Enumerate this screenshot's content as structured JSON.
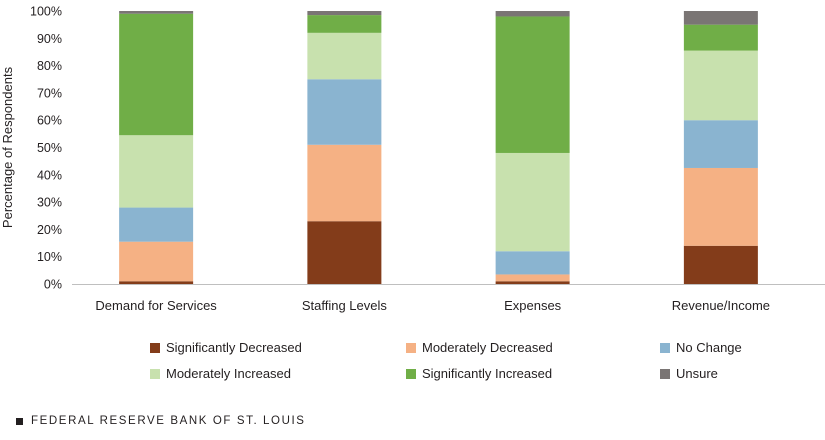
{
  "chart_data": {
    "type": "bar",
    "stacked": true,
    "categories": [
      "Demand for Services",
      "Staffing Levels",
      "Expenses",
      "Revenue/Income"
    ],
    "series": [
      {
        "name": "Significantly Decreased",
        "color": "#833c1a",
        "values": [
          1,
          23,
          1,
          14
        ]
      },
      {
        "name": "Moderately Decreased",
        "color": "#f5b184",
        "values": [
          14.5,
          28,
          2.5,
          28.5
        ]
      },
      {
        "name": "No Change",
        "color": "#8ab4d0",
        "values": [
          12.5,
          24,
          8.5,
          17.5
        ]
      },
      {
        "name": "Moderately Increased",
        "color": "#c8e1ae",
        "values": [
          26.5,
          17,
          36,
          25.5
        ]
      },
      {
        "name": "Significantly Increased",
        "color": "#70ae47",
        "values": [
          44.5,
          6.5,
          50,
          9.5
        ]
      },
      {
        "name": "Unsure",
        "color": "#7a7574",
        "values": [
          1,
          1.5,
          2,
          5
        ]
      }
    ],
    "ylabel": "Percentage of Respondents",
    "ylim": [
      0,
      100
    ],
    "yticks": [
      0,
      10,
      20,
      30,
      40,
      50,
      60,
      70,
      80,
      90,
      100
    ],
    "ytick_labels": [
      "0%",
      "10%",
      "20%",
      "30%",
      "40%",
      "50%",
      "60%",
      "70%",
      "80%",
      "90%",
      "100%"
    ],
    "legend_position": "bottom",
    "grid": false
  },
  "footer": {
    "source": "FEDERAL RESERVE BANK OF ST. LOUIS",
    "mark_color": "#231f20"
  }
}
